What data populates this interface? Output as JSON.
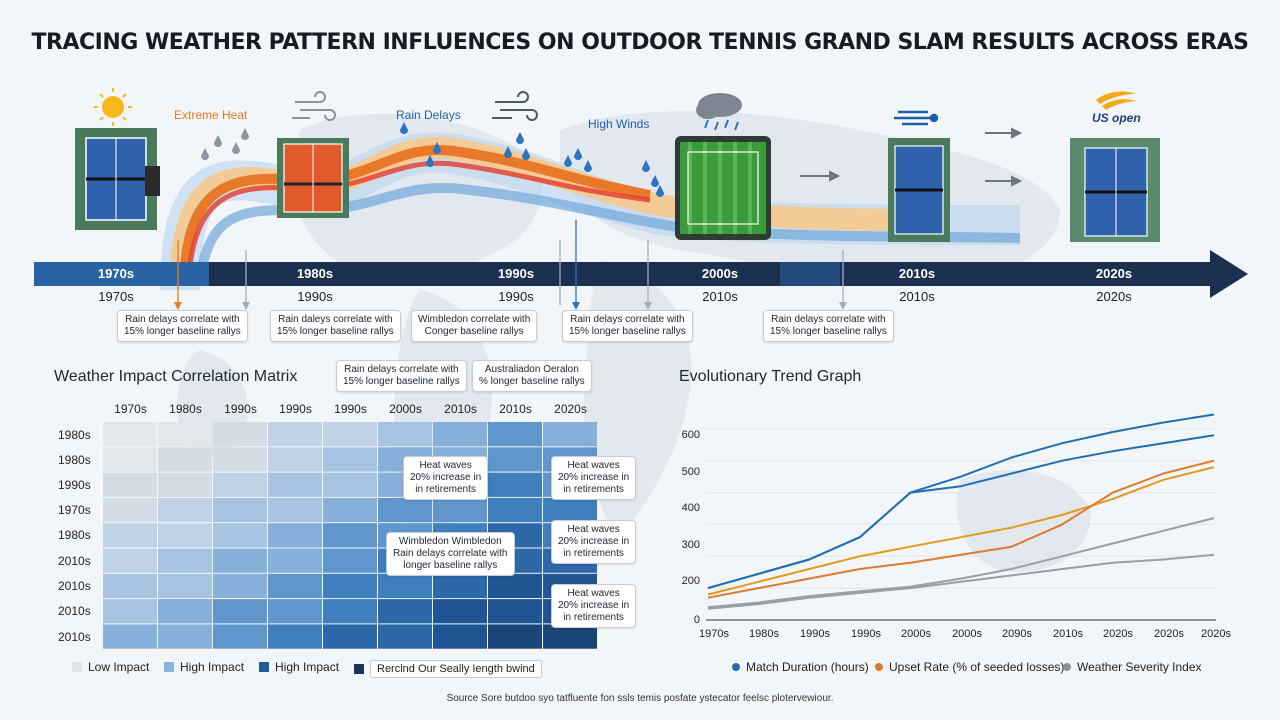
{
  "title": "TRACING WEATHER PATTERN INFLUENCES ON OUTDOOR TENNIS GRAND SLAM RESULTS ACROSS ERAS",
  "timeline": {
    "weather_labels": [
      {
        "text": "Extreme Heat",
        "color": "#e07b21"
      },
      {
        "text": "Rain Delays",
        "color": "#1f5fa8"
      },
      {
        "text": "High Winds",
        "color": "#1f5fa8"
      }
    ],
    "us_open_logo": "US open",
    "eras_top": [
      "1970s",
      "1980s",
      "1990s",
      "2000s",
      "2010s",
      "2020s"
    ],
    "eras_bottom": [
      "1970s",
      "1990s",
      "1990s",
      "2010s",
      "2010s",
      "2020s"
    ],
    "callouts": [
      {
        "l1": "Rain delays correlate with",
        "l2": "15% longer baseline rallys"
      },
      {
        "l1": "Rain daleys correlate with",
        "l2": "15% longer baseline rallys"
      },
      {
        "l1": "Wimbledon correlate with",
        "l2": "Conger baseline rallys"
      },
      {
        "l1": "Rain delays correlate with",
        "l2": "15% longer baseline rallys"
      },
      {
        "l1": "Rain delays correlate with",
        "l2": "15% longer baseline rallys"
      }
    ],
    "colors": {
      "heat": "#e8792a",
      "rain": "#3f86c9",
      "arrow": "#1b2f4f"
    }
  },
  "matrix": {
    "title": "Weather Impact Correlation Matrix",
    "col_labels": [
      "1970s",
      "1980s",
      "1990s",
      "1990s",
      "1990s",
      "2000s",
      "2010s",
      "2010s",
      "2020s"
    ],
    "row_labels": [
      "1980s",
      "1980s",
      "1990s",
      "1970s",
      "1980s",
      "2010s",
      "2010s",
      "2010s",
      "2010s"
    ],
    "top_callouts": [
      {
        "l1": "Rain delays correlate with",
        "l2": "15% longer baseline rallys"
      },
      {
        "l1": "Australiadon Oeralon",
        "l2": "% longer baseline rallys"
      }
    ],
    "cell_callouts": [
      {
        "l1": "Heat waves",
        "l2": "20% increase in",
        "l3": "in retirements"
      },
      {
        "l1": "Heat waves",
        "l2": "20% increase in",
        "l3": "in retirements"
      },
      {
        "l1": "Heat waves",
        "l2": "20% increase in",
        "l3": "in retirements"
      },
      {
        "l1": "Heat waves",
        "l2": "20% increase in",
        "l3": "in retirements"
      },
      {
        "l1": "Wimbledon Wimbledon",
        "l2": "Rain delays correlate with",
        "l3": "longer baseline rallys"
      }
    ],
    "legend": [
      {
        "label": "Low Impact",
        "color": "#dfe5eb"
      },
      {
        "label": "High Impact",
        "color": "#8bb4db"
      },
      {
        "label": "High Impact",
        "color": "#1f5a99"
      },
      {
        "label": "Rercind Our Seally Iength bwind",
        "color": "#17345e"
      }
    ]
  },
  "chart_data": {
    "type": "line",
    "title": "Evolutionary Trend Graph",
    "xlabel": "",
    "ylabel": "",
    "x": [
      "1970s",
      "1980s",
      "1990s",
      "1990s",
      "2000s",
      "2000s",
      "2090s",
      "2010s",
      "2020s",
      "2020s",
      "2020s"
    ],
    "ylim": [
      0,
      700
    ],
    "yticks": [
      0,
      100,
      200,
      300,
      400,
      500,
      600
    ],
    "series": [
      {
        "name": "Match Duration (hours)",
        "color": "#1f6fb2",
        "values": [
          100,
          145,
          190,
          260,
          400,
          450,
          510,
          555,
          590,
          620,
          645
        ]
      },
      {
        "name": "Match Duration (hours)",
        "color": "#1f6fb2",
        "values": [
          100,
          145,
          190,
          260,
          400,
          420,
          460,
          500,
          530,
          555,
          580
        ]
      },
      {
        "name": "Upset Rate (% of seeded losses)",
        "color": "#e39a1e",
        "values": [
          80,
          120,
          160,
          200,
          230,
          260,
          290,
          330,
          380,
          440,
          480
        ]
      },
      {
        "name": "Upset Rate (% of seeded losses)",
        "color": "#e07a2e",
        "values": [
          70,
          100,
          130,
          160,
          180,
          205,
          230,
          300,
          400,
          460,
          500
        ]
      },
      {
        "name": "Weather Severity Index",
        "color": "#9a9ea5",
        "values": [
          40,
          55,
          75,
          90,
          105,
          130,
          160,
          200,
          240,
          280,
          320
        ]
      },
      {
        "name": "Weather Severity Index",
        "color": "#9a9ea5",
        "values": [
          35,
          50,
          70,
          85,
          100,
          120,
          140,
          160,
          180,
          190,
          205
        ]
      }
    ],
    "legend": [
      {
        "label": "Match Duration (hours)",
        "color": "#1f6fb2"
      },
      {
        "label": "Upset Rate (% of seeded losses)",
        "color": "#e07a2e"
      },
      {
        "label": "Weather Severity Index",
        "color": "#8b8f96"
      }
    ]
  },
  "footer": "Source Sore butdoo syo tatfluente fon ssls temis posfate ystecator feelsc plotervewiour."
}
